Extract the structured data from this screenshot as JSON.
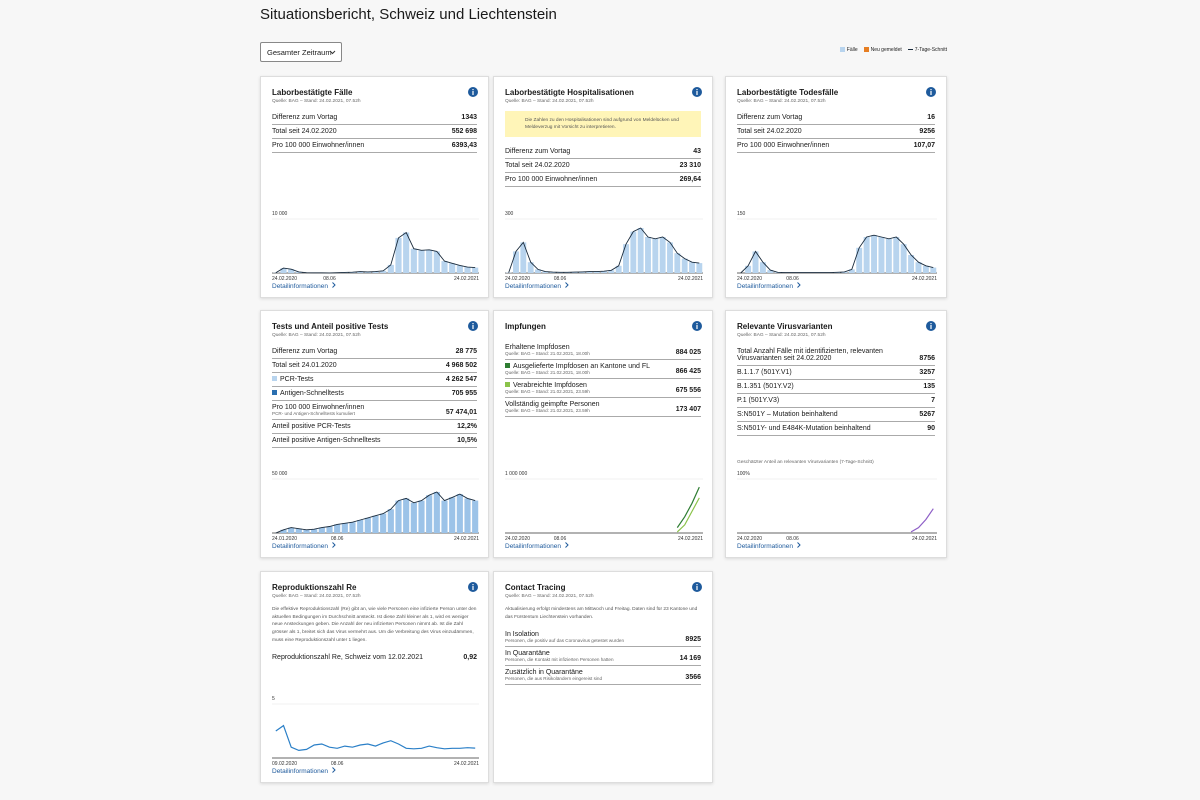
{
  "header": {
    "title": "Situationsbericht, Schweiz und Liechtenstein",
    "period_select": "Gesamter Zeitraum",
    "legend": [
      {
        "label": "Fälle",
        "color": "#b8d4ee"
      },
      {
        "label": "Neu gemeldet",
        "color": "#e67e22"
      },
      {
        "label": "7-Tage-Schnitt",
        "color": "#1a2b3c"
      }
    ]
  },
  "cards": [
    {
      "title": "Laborbestätigte Fälle",
      "source": "Quelle: BAG – Stand: 24.02.2021, 07.52h",
      "rows": [
        {
          "label": "Differenz zum Vortag",
          "value": "1343"
        },
        {
          "label": "Total seit 24.02.2020",
          "value": "552 698"
        },
        {
          "label": "Pro 100 000 Einwohner/innen",
          "value": "6393,43"
        }
      ],
      "chart": {
        "type": "bar",
        "color": "#b8d4ee",
        "line_color": "#1a2b3c",
        "ylim": [
          0,
          10000
        ],
        "yticks": [
          {
            "value": 10000,
            "label": "10 000"
          }
        ],
        "categories": [
          "24.02.2020",
          null,
          null,
          null,
          null,
          null,
          null,
          "08.06",
          null,
          null,
          null,
          null,
          null,
          null,
          null,
          null,
          null,
          null,
          null,
          null,
          null,
          null,
          null,
          null,
          null,
          null,
          "24.02.2021"
        ],
        "values": [
          50,
          900,
          700,
          200,
          60,
          40,
          30,
          20,
          60,
          120,
          150,
          250,
          200,
          250,
          400,
          1500,
          6500,
          7500,
          4500,
          4200,
          4300,
          4000,
          2200,
          1800,
          1400,
          1100,
          1000
        ]
      },
      "link": "Detailinformationen"
    },
    {
      "title": "Laborbestätigte Hospitalisationen",
      "source": "Quelle: BAG – Stand: 24.02.2021, 07.52h",
      "note": "Die Zahlen zu den Hospitalisationen sind aufgrund von Meldelücken und Meldeverzug mit Vorsicht zu interpretieren.",
      "rows": [
        {
          "label": "Differenz zum Vortag",
          "value": "43"
        },
        {
          "label": "Total seit 24.02.2020",
          "value": "23 310"
        },
        {
          "label": "Pro 100 000 Einwohner/innen",
          "value": "269,64"
        }
      ],
      "chart": {
        "type": "bar",
        "color": "#b8d4ee",
        "line_color": "#1a2b3c",
        "ylim": [
          0,
          300
        ],
        "yticks": [
          300
        ],
        "categories": [
          "24.02.2020",
          null,
          null,
          null,
          null,
          null,
          null,
          "08.06",
          null,
          null,
          null,
          null,
          null,
          null,
          null,
          null,
          null,
          null,
          null,
          null,
          null,
          null,
          null,
          null,
          null,
          null,
          "24.02.2021"
        ],
        "values": [
          2,
          120,
          170,
          60,
          20,
          8,
          5,
          4,
          4,
          5,
          6,
          8,
          8,
          10,
          15,
          40,
          160,
          230,
          250,
          200,
          190,
          200,
          170,
          110,
          80,
          60,
          55
        ]
      },
      "link": "Detailinformationen"
    },
    {
      "title": "Laborbestätigte Todesfälle",
      "source": "Quelle: BAG – Stand: 24.02.2021, 07.52h",
      "rows": [
        {
          "label": "Differenz zum Vortag",
          "value": "16"
        },
        {
          "label": "Total seit 24.02.2020",
          "value": "9256"
        },
        {
          "label": "Pro 100 000 Einwohner/innen",
          "value": "107,07"
        }
      ],
      "chart": {
        "type": "bar",
        "color": "#b8d4ee",
        "line_color": "#1a2b3c",
        "ylim": [
          0,
          150
        ],
        "yticks": [
          150
        ],
        "categories": [
          "24.02.2020",
          null,
          null,
          null,
          null,
          null,
          null,
          "08.06",
          null,
          null,
          null,
          null,
          null,
          null,
          null,
          null,
          null,
          null,
          null,
          null,
          null,
          null,
          null,
          null,
          null,
          null,
          "24.02.2021"
        ],
        "values": [
          0,
          20,
          60,
          30,
          8,
          2,
          1,
          1,
          1,
          1,
          1,
          1,
          1,
          2,
          3,
          10,
          70,
          100,
          105,
          100,
          95,
          100,
          80,
          50,
          30,
          20,
          15
        ]
      },
      "link": "Detailinformationen"
    },
    {
      "title": "Tests und Anteil positive Tests",
      "source": "Quelle: BAG – Stand: 24.02.2021, 07.52h",
      "rows": [
        {
          "label": "Differenz zum Vortag",
          "value": "28 775"
        },
        {
          "label": "Total seit 24.01.2020",
          "value": "4 968 502"
        },
        {
          "label": "PCR-Tests",
          "value": "4 262 547",
          "marker": "#b8d4ee"
        },
        {
          "label": "Antigen-Schnelltests",
          "value": "705 955",
          "marker": "#2a6fb0"
        },
        {
          "label": "Pro 100 000 Einwohner/innen",
          "value": "57 474,01",
          "sub": "PCR- und Antigen-Schnelltests kumuliert"
        },
        {
          "label": "Anteil positive PCR-Tests",
          "value": "12,2%"
        },
        {
          "label": "Anteil positive Antigen-Schnelltests",
          "value": "10,5%"
        }
      ],
      "chart": {
        "type": "bar",
        "color": "#9cc3e8",
        "line_color": "#1a2b3c",
        "ylim": [
          0,
          50000
        ],
        "yticks": [
          {
            "value": 50000,
            "label": "50 000"
          }
        ],
        "categories": [
          "24.01.2020",
          null,
          null,
          null,
          null,
          null,
          null,
          null,
          "08.06",
          null,
          null,
          null,
          null,
          null,
          null,
          null,
          null,
          null,
          null,
          null,
          null,
          null,
          null,
          null,
          null,
          null,
          "24.02.2021"
        ],
        "values": [
          0,
          3000,
          5000,
          4000,
          3000,
          3500,
          5000,
          6000,
          8000,
          9000,
          10000,
          12000,
          14000,
          16000,
          18000,
          22000,
          30000,
          32000,
          28000,
          30000,
          35000,
          38000,
          30000,
          33000,
          36000,
          32000,
          30000
        ]
      },
      "link": "Detailinformationen"
    },
    {
      "title": "Impfungen",
      "rows": [
        {
          "label": "Erhaltene Impfdosen",
          "value": "884 025",
          "sub": "Quelle: BAG – Stand: 21.02.2021, 18.00h"
        },
        {
          "label": "Ausgelieferte Impfdosen an Kantone und FL",
          "value": "866 425",
          "sub": "Quelle: BAG – Stand: 21.02.2021, 18.00h",
          "marker": "#2e7d32"
        },
        {
          "label": "Verabreichte Impfdosen",
          "value": "675 556",
          "sub": "Quelle: BAG – Stand: 21.02.2021, 23.59h",
          "marker": "#8bc34a"
        },
        {
          "label": "Vollständig geimpfte Personen",
          "value": "173 407",
          "sub": "Quelle: BAG – Stand: 21.02.2021, 23.59h"
        }
      ],
      "chart": {
        "type": "line",
        "ylim": [
          0,
          1000000
        ],
        "yticks": [
          {
            "value": 1000000,
            "label": "1 000 000"
          }
        ],
        "categories": [
          "24.02.2020",
          null,
          null,
          null,
          null,
          null,
          null,
          "08.06",
          null,
          null,
          null,
          null,
          null,
          null,
          null,
          null,
          null,
          null,
          null,
          null,
          null,
          null,
          null,
          null,
          null,
          null,
          "24.02.2021"
        ],
        "series": [
          {
            "color": "#2e7d32",
            "values": [
              null,
              null,
              null,
              null,
              null,
              null,
              null,
              null,
              null,
              null,
              null,
              null,
              null,
              null,
              null,
              null,
              null,
              null,
              null,
              null,
              null,
              null,
              null,
              100000,
              300000,
              550000,
              850000
            ]
          },
          {
            "color": "#8bc34a",
            "values": [
              null,
              null,
              null,
              null,
              null,
              null,
              null,
              null,
              null,
              null,
              null,
              null,
              null,
              null,
              null,
              null,
              null,
              null,
              null,
              null,
              null,
              null,
              null,
              20000,
              150000,
              400000,
              650000
            ]
          }
        ]
      },
      "link": "Detailinformationen"
    },
    {
      "title": "Relevante Virusvarianten",
      "source": "Quelle: BAG – Stand: 24.02.2021, 07.52h",
      "rows": [
        {
          "label": "Total Anzahl Fälle mit identifizierten, relevanten Virusvarianten seit 24.02.2020",
          "value": "8756"
        },
        {
          "label": "B.1.1.7 (501Y.V1)",
          "value": "3257"
        },
        {
          "label": "B.1.351 (501Y.V2)",
          "value": "135"
        },
        {
          "label": "P.1 (501Y.V3)",
          "value": "7"
        },
        {
          "label": "S:N501Y – Mutation beinhaltend",
          "value": "5267"
        },
        {
          "label": "S:N501Y- und E484K-Mutation beinhaltend",
          "value": "90"
        }
      ],
      "chart": {
        "type": "line",
        "caption": "Geschätzter Anteil an relevanten Virusvarianten (7-Tage-Schnitt)",
        "ylim": [
          0,
          100
        ],
        "yticks": [
          {
            "value": 100,
            "label": "100%"
          }
        ],
        "categories": [
          "24.02.2020",
          null,
          null,
          null,
          null,
          null,
          null,
          "08.06",
          null,
          null,
          null,
          null,
          null,
          null,
          null,
          null,
          null,
          null,
          null,
          null,
          null,
          null,
          null,
          null,
          null,
          null,
          "24.02.2021"
        ],
        "series": [
          {
            "color": "#8e5fc7",
            "values": [
              null,
              null,
              null,
              null,
              null,
              null,
              null,
              null,
              null,
              null,
              null,
              null,
              null,
              null,
              null,
              null,
              null,
              null,
              null,
              null,
              null,
              null,
              null,
              2,
              10,
              25,
              45
            ]
          }
        ]
      },
      "link": "Detailinformationen"
    },
    {
      "title": "Reproduktionszahl Re",
      "source": "Quelle: BAG – Stand: 24.02.2021, 07.52h",
      "intro": "Die effektive Reproduktionszahl (Re) gibt an, wie viele Personen eine infizierte Person unter den aktuellen Bedingungen im Durchschnitt ansteckt. Ist diese Zahl kleiner als 1, wird es weniger neue Ansteckungen geben. Die Anzahl der neu infizierten Personen nimmt ab. Ist die Zahl grösser als 1, breitet sich das Virus vermehrt aus. Um die Verbreitung des Virus einzudämmen, muss eine Reproduktionszahl unter 1 liegen.",
      "rows": [
        {
          "label": "Reproduktionszahl Re, Schweiz vom 12.02.2021",
          "value": "0,92"
        }
      ],
      "chart": {
        "type": "line",
        "ylim": [
          0,
          5
        ],
        "yticks": [
          5
        ],
        "categories": [
          "09.02.2020",
          null,
          null,
          null,
          null,
          null,
          null,
          null,
          "08.06",
          null,
          null,
          null,
          null,
          null,
          null,
          null,
          null,
          null,
          null,
          null,
          null,
          null,
          null,
          null,
          null,
          null,
          "24.02.2021"
        ],
        "series": [
          {
            "color": "#2a7fc7",
            "values": [
              2.5,
              3,
              1,
              0.7,
              0.8,
              1.2,
              1.3,
              1,
              0.9,
              1.1,
              1,
              1.2,
              1.3,
              1.1,
              1.4,
              1.6,
              1.3,
              0.9,
              0.85,
              0.9,
              1.1,
              0.95,
              0.85,
              0.9,
              0.9,
              0.95,
              0.92
            ]
          }
        ]
      },
      "link": "Detailinformationen"
    },
    {
      "title": "Contact Tracing",
      "source": "Quelle: BAG – Stand: 24.02.2021, 07.52h",
      "intro": "Aktualisierung erfolgt mindestens am Mittwoch und Freitag. Daten sind für 23 Kantone und das Fürstentum Liechtenstein vorhanden.",
      "rows": [
        {
          "label": "In Isolation",
          "value": "8925",
          "sub": "Personen, die positiv auf das Coronavirus getestet wurden"
        },
        {
          "label": "In Quarantäne",
          "value": "14 169",
          "sub": "Personen, die Kontakt mit infizierten Personen hatten"
        },
        {
          "label": "Zusätzlich in Quarantäne",
          "value": "3566",
          "sub": "Personen, die aus Risikoländern eingereist sind"
        }
      ]
    }
  ]
}
